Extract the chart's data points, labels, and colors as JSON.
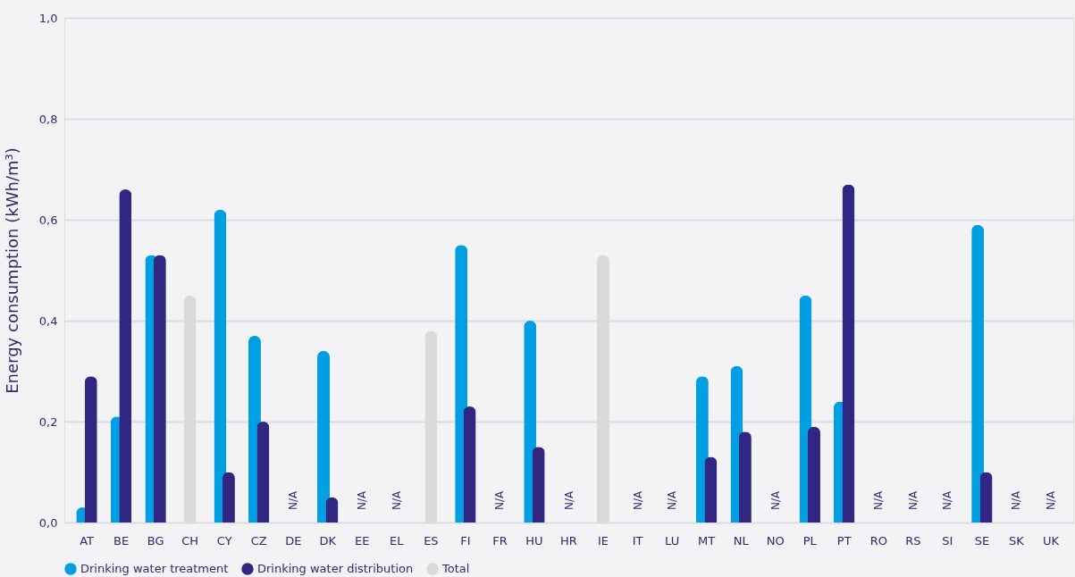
{
  "chart_data": {
    "type": "bar",
    "ylabel": "Energy consumption (kWh/m³)",
    "categories": [
      "AT",
      "BE",
      "BG",
      "CH",
      "CY",
      "CZ",
      "DE",
      "DK",
      "EE",
      "EL",
      "ES",
      "FI",
      "FR",
      "HU",
      "HR",
      "IE",
      "IT",
      "LU",
      "MT",
      "NL",
      "NO",
      "PL",
      "PT",
      "RO",
      "RS",
      "SI",
      "SE",
      "SK",
      "UK"
    ],
    "series": [
      {
        "name": "Drinking water treatment",
        "color": "#009fe3",
        "values": [
          0.03,
          0.21,
          0.53,
          null,
          0.62,
          0.37,
          null,
          0.34,
          null,
          null,
          null,
          0.55,
          null,
          0.4,
          null,
          null,
          null,
          null,
          0.29,
          0.31,
          null,
          0.45,
          0.24,
          null,
          null,
          null,
          0.59,
          null,
          null
        ]
      },
      {
        "name": "Drinking water distribution",
        "color": "#312783",
        "values": [
          0.29,
          0.66,
          0.53,
          null,
          0.1,
          0.2,
          null,
          0.05,
          null,
          null,
          null,
          0.23,
          null,
          0.15,
          null,
          null,
          null,
          null,
          0.13,
          0.18,
          null,
          0.19,
          0.67,
          null,
          null,
          null,
          0.1,
          null,
          null
        ]
      },
      {
        "name": "Total",
        "color": "#dadada",
        "values": [
          null,
          null,
          null,
          0.45,
          null,
          null,
          null,
          null,
          null,
          null,
          0.38,
          null,
          null,
          null,
          null,
          0.53,
          null,
          null,
          null,
          null,
          null,
          null,
          null,
          null,
          null,
          null,
          null,
          null,
          null
        ]
      }
    ],
    "ylim": [
      0,
      1.0
    ],
    "yticks": [
      {
        "value": 0,
        "label": "0,0"
      },
      {
        "value": 0.2,
        "label": "0,2"
      },
      {
        "value": 0.4,
        "label": "0,4"
      },
      {
        "value": 0.6,
        "label": "0,6"
      },
      {
        "value": 0.8,
        "label": "0,8"
      },
      {
        "value": 1.0,
        "label": "1,0"
      }
    ],
    "grid": "y",
    "legend": "bottom left",
    "annotations": [
      "N/A",
      "N/A",
      "N/A",
      "N/A",
      "N/A",
      "N/A",
      "N/A",
      "N/A",
      "N/A",
      "N/A",
      "N/A",
      "N/A",
      "N/A"
    ]
  }
}
